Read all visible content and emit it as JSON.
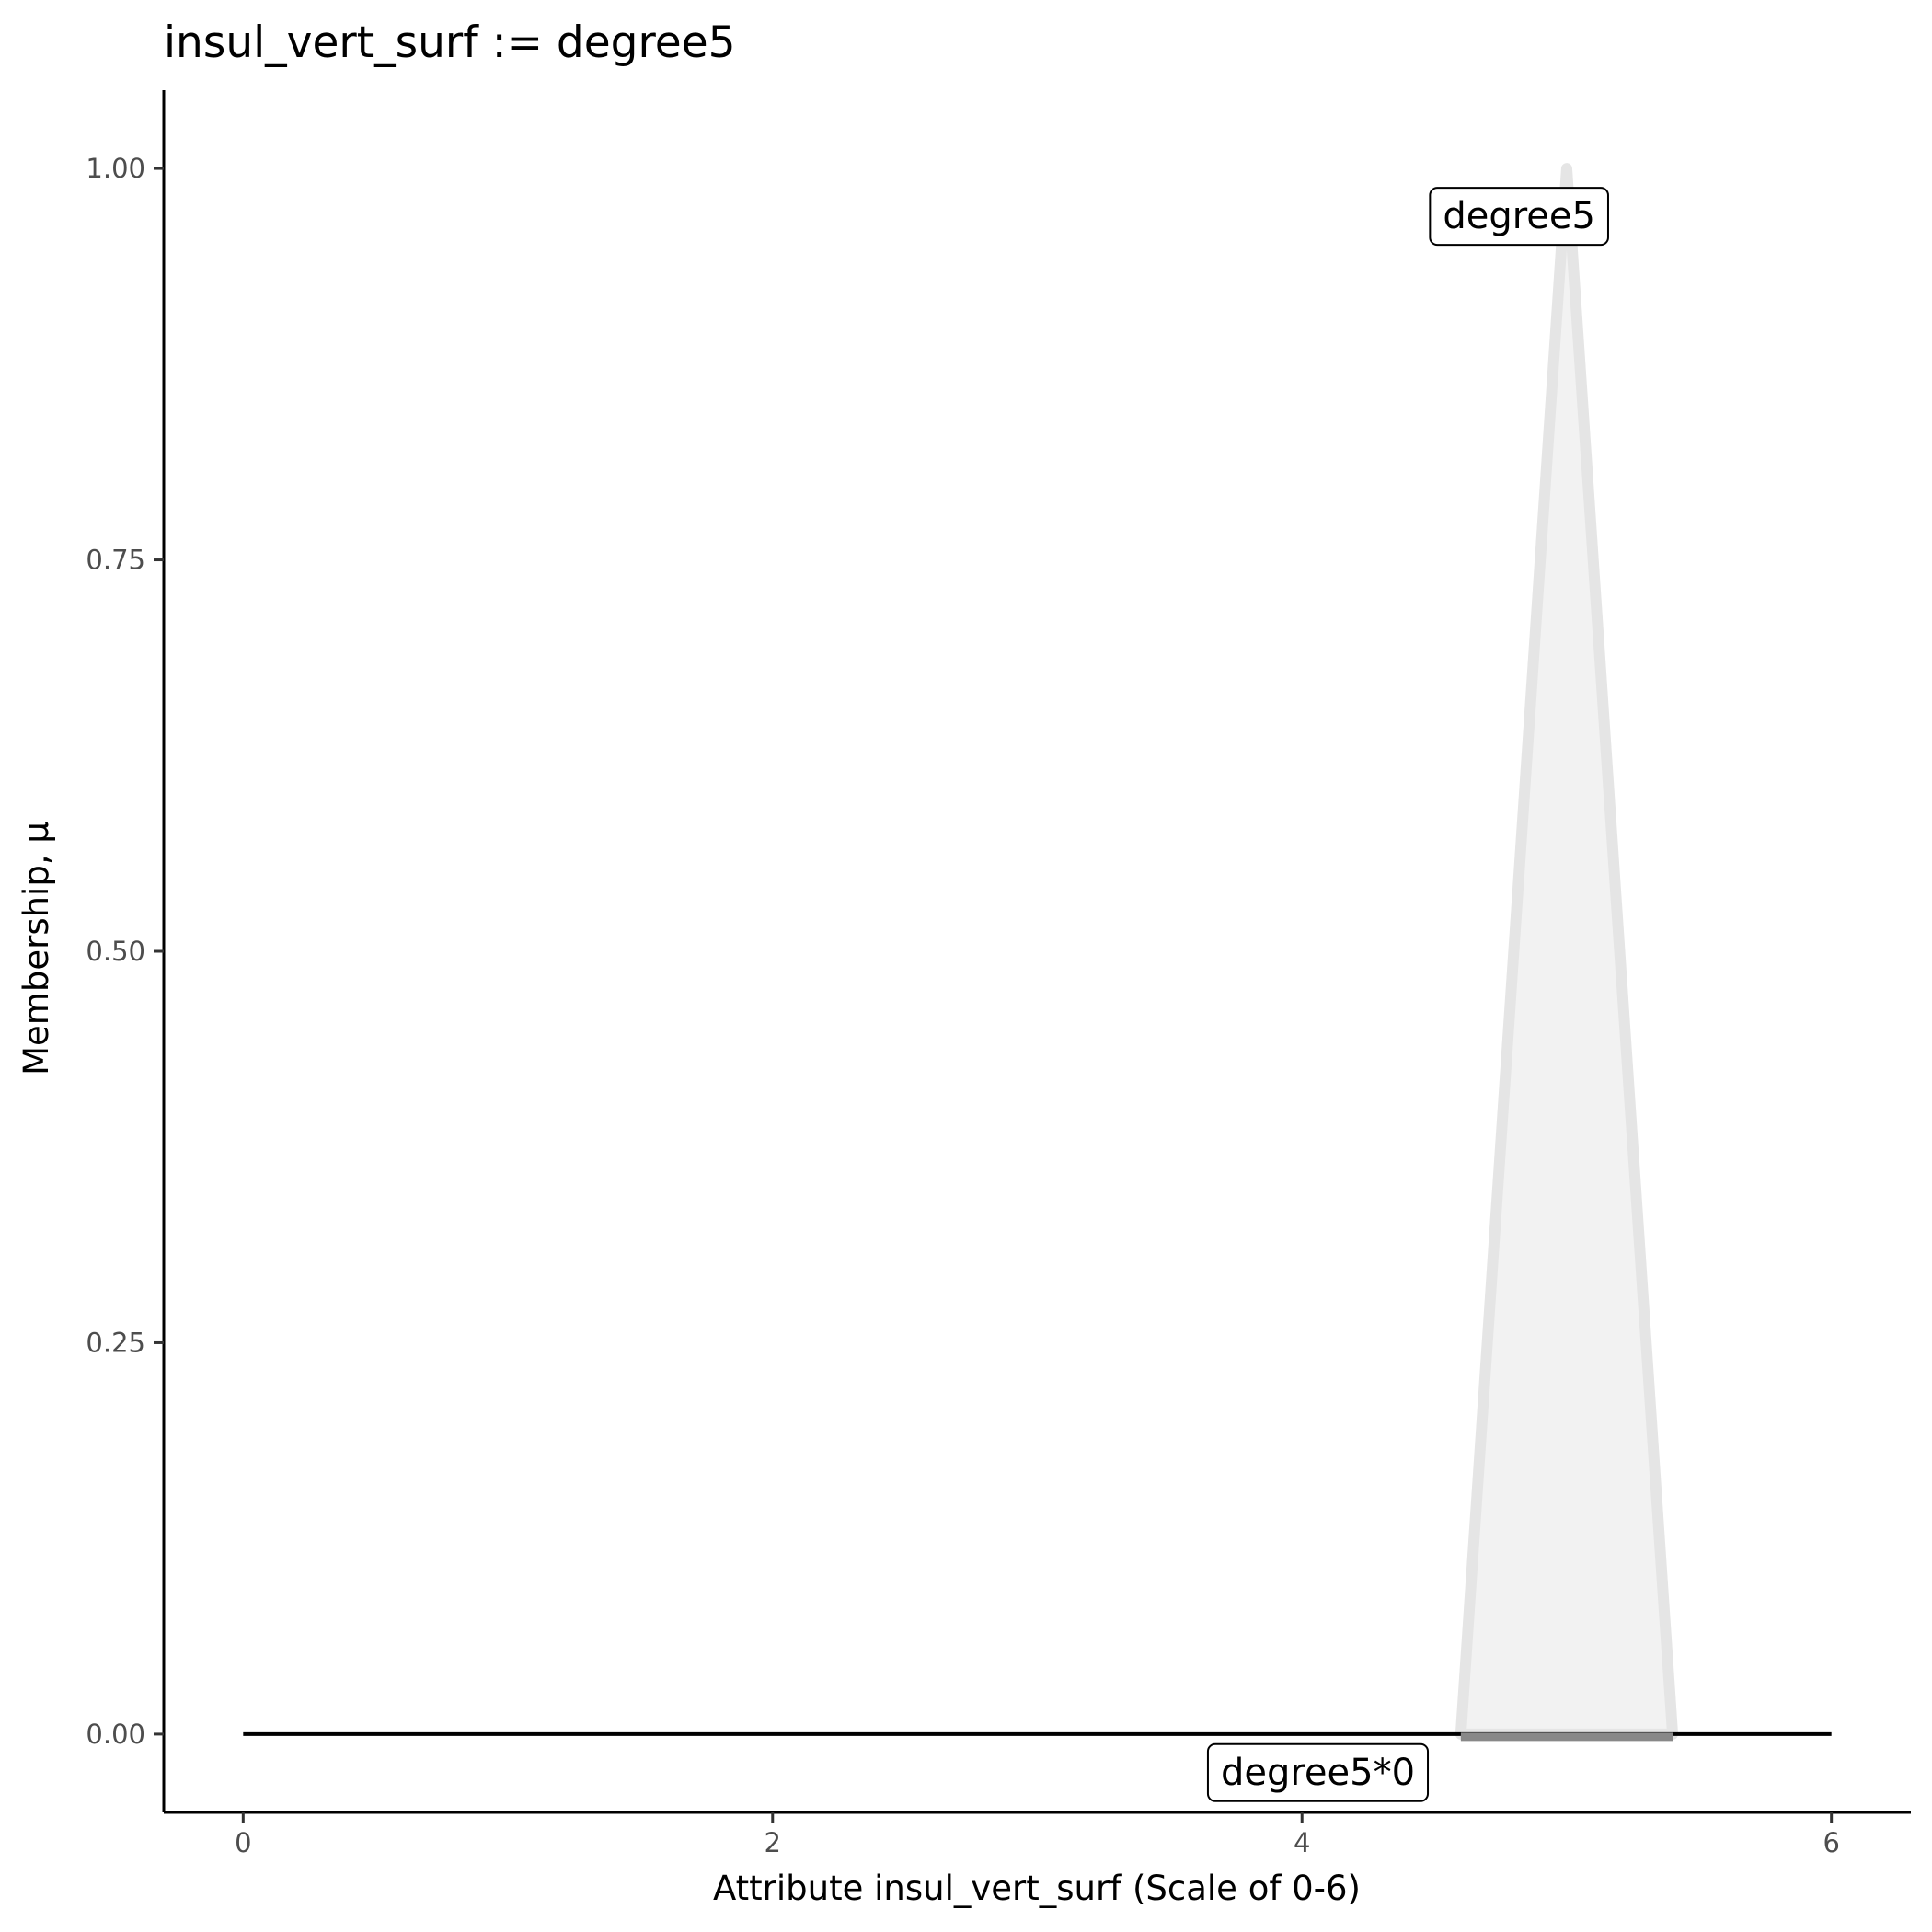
{
  "chart_data": {
    "type": "area",
    "title": "insul_vert_surf := degree5",
    "xlabel": "Attribute insul_vert_surf (Scale of 0-6)",
    "ylabel": "Membership, μ",
    "xlim": [
      -0.3,
      6.3
    ],
    "ylim": [
      -0.05,
      1.05
    ],
    "x_ticks": [
      0,
      2,
      4,
      6
    ],
    "x_tick_labels": [
      "0",
      "2",
      "4",
      "6"
    ],
    "y_ticks": [
      0,
      0.25,
      0.5,
      0.75,
      1.0
    ],
    "y_tick_labels": [
      "0.00",
      "0.25",
      "0.50",
      "0.75",
      "1.00"
    ],
    "grid": false,
    "series": [
      {
        "name": "degree5",
        "x": [
          4.6,
          5.0,
          5.4
        ],
        "y": [
          0,
          1,
          0
        ],
        "fill": "#f2f2f2",
        "stroke": "#e5e5e5"
      },
      {
        "name": "degree5*0",
        "x": [
          0,
          6
        ],
        "y": [
          0,
          0
        ],
        "stroke": "#000000"
      },
      {
        "x": [
          4.6,
          5.4
        ],
        "y": [
          0,
          0
        ],
        "stroke": "#888888"
      }
    ],
    "annotations": [
      {
        "text": "degree5",
        "x": 4.82,
        "y": 0.97
      },
      {
        "text": "degree5*0",
        "x": 4.06,
        "y": -0.024
      }
    ]
  }
}
